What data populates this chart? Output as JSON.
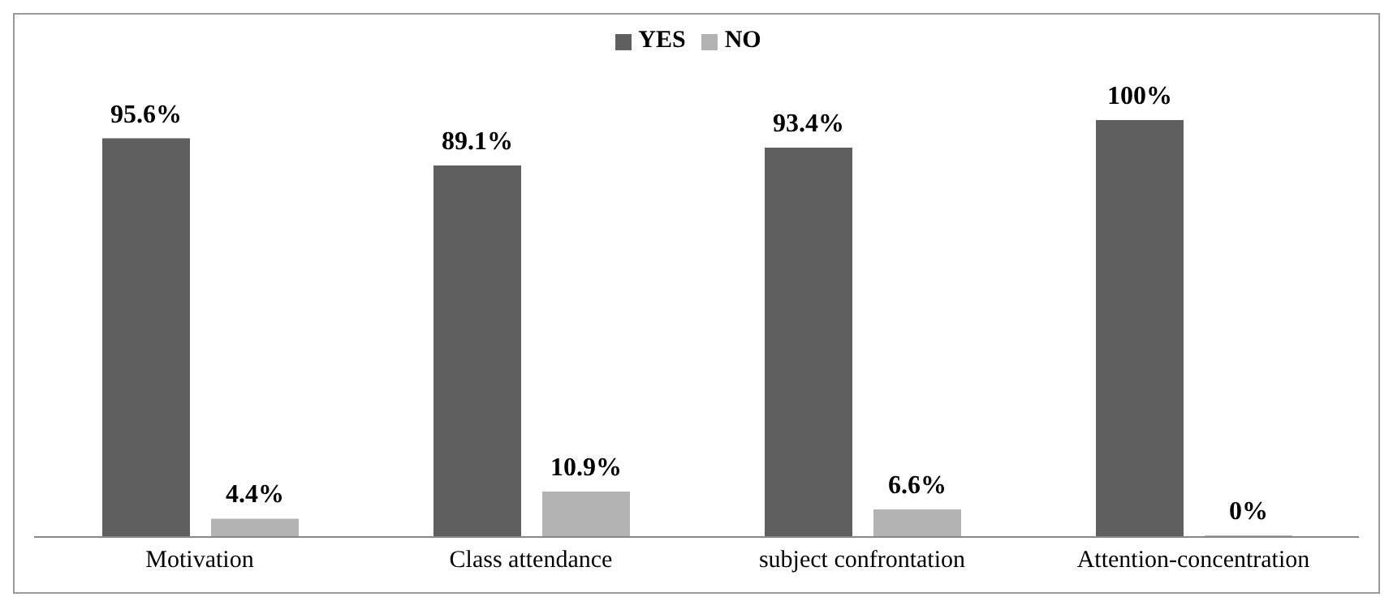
{
  "chart_data": {
    "type": "bar",
    "categories": [
      "Motivation",
      "Class attendance",
      "subject confrontation",
      "Attention-concentration"
    ],
    "series": [
      {
        "name": "YES",
        "color": "#5f5f5f",
        "values": [
          95.6,
          89.1,
          93.4,
          100
        ],
        "value_labels": [
          "95.6%",
          "89.1%",
          "93.4%",
          "100%"
        ]
      },
      {
        "name": "NO",
        "color": "#b3b3b3",
        "values": [
          4.4,
          10.9,
          6.6,
          0
        ],
        "value_labels": [
          "4.4%",
          "10.9%",
          "6.6%",
          "0%"
        ]
      }
    ],
    "legend": "top",
    "grid": false
  }
}
